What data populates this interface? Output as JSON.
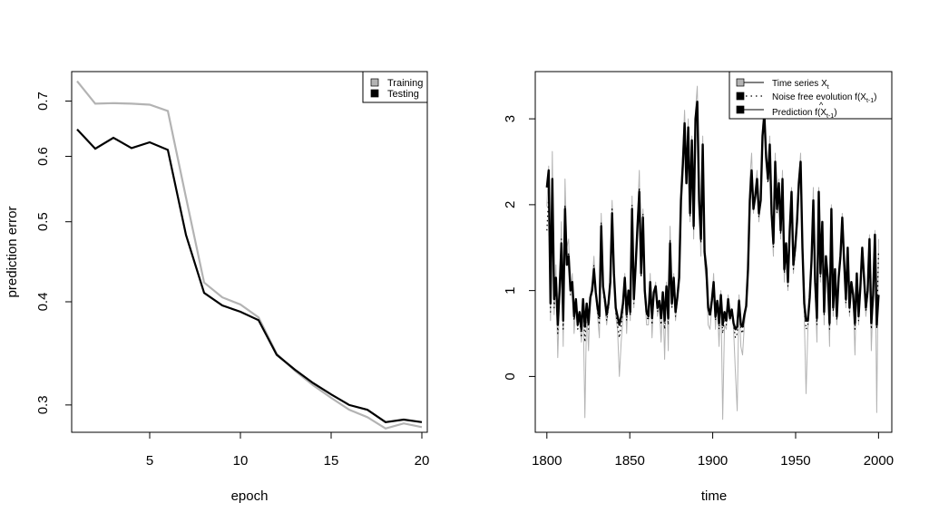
{
  "chart_data": [
    {
      "type": "line",
      "title": "",
      "xlabel": "epoch",
      "ylabel": "prediction error",
      "y_scale": "log",
      "xlim": [
        0.7,
        20.3
      ],
      "ylim": [
        0.278,
        0.76
      ],
      "x_ticks": [
        5,
        10,
        15,
        20
      ],
      "y_ticks": [
        0.3,
        0.4,
        0.5,
        0.6,
        0.7
      ],
      "x_tick_labels": [
        "5",
        "10",
        "15",
        "20"
      ],
      "y_tick_labels": [
        "0.3",
        "0.4",
        "0.5",
        "0.6",
        "0.7"
      ],
      "legend_position": "top-right",
      "x": [
        1,
        2,
        3,
        4,
        5,
        6,
        7,
        8,
        9,
        10,
        11,
        12,
        13,
        14,
        15,
        16,
        17,
        18,
        19,
        20
      ],
      "series": [
        {
          "name": "Training",
          "color": "#b3b3b3",
          "values": [
            0.74,
            0.695,
            0.696,
            0.695,
            0.693,
            0.681,
            0.535,
            0.422,
            0.405,
            0.397,
            0.383,
            0.346,
            0.33,
            0.317,
            0.306,
            0.296,
            0.29,
            0.281,
            0.285,
            0.282
          ]
        },
        {
          "name": "Testing",
          "color": "#000000",
          "values": [
            0.647,
            0.613,
            0.632,
            0.614,
            0.624,
            0.611,
            0.482,
            0.41,
            0.396,
            0.389,
            0.38,
            0.345,
            0.331,
            0.319,
            0.309,
            0.3,
            0.296,
            0.286,
            0.288,
            0.286
          ]
        }
      ]
    },
    {
      "type": "line",
      "title": "",
      "xlabel": "time",
      "ylabel": "",
      "xlim": [
        1793,
        2008
      ],
      "ylim": [
        -0.65,
        3.55
      ],
      "x_ticks": [
        1800,
        1850,
        1900,
        1950,
        2000
      ],
      "y_ticks": [
        0,
        1,
        2,
        3
      ],
      "x_tick_labels": [
        "1800",
        "1850",
        "1900",
        "1950",
        "2000"
      ],
      "y_tick_labels": [
        "0",
        "1",
        "2",
        "3"
      ],
      "legend_position": "top-right",
      "legend": [
        {
          "label": "Time series X",
          "sub": "t",
          "style": "gray-solid"
        },
        {
          "label": "Noise free evolution f(X",
          "sub": "t-1",
          "suffix": ")",
          "style": "dotted"
        },
        {
          "label": "Prediction f(X",
          "sub": "t-1",
          "suffix": ")",
          "hat": "^",
          "style": "black-solid"
        }
      ],
      "time_start": 1800,
      "series": [
        {
          "name": "Time series X",
          "color": "#b3b3b3",
          "values": [
            1.98,
            2.45,
            0.65,
            2.62,
            0.72,
            1.3,
            0.22,
            0.9,
            1.8,
            0.35,
            2.3,
            1.5,
            1.6,
            0.95,
            1.2,
            0.5,
            0.85,
            0.58,
            0.72,
            0.4,
            0.88,
            -0.48,
            0.82,
            0.3,
            0.95,
            1.1,
            1.4,
            0.95,
            0.7,
            0.45,
            1.9,
            1.1,
            0.85,
            0.6,
            0.8,
            1.2,
            2.05,
            1.3,
            0.7,
            0.55,
            0.0,
            0.4,
            0.7,
            1.2,
            0.5,
            1.0,
            0.65,
            2.1,
            0.8,
            1.4,
            1.85,
            2.4,
            1.2,
            1.95,
            0.95,
            0.6,
            0.6,
            1.2,
            0.45,
            0.95,
            1.1,
            0.7,
            0.85,
            0.4,
            0.95,
            0.2,
            1.1,
            0.3,
            1.75,
            0.8,
            1.2,
            0.65,
            0.9,
            1.2,
            2.2,
            2.6,
            3.1,
            2.4,
            3.0,
            1.8,
            2.8,
            1.6,
            3.1,
            3.38,
            2.0,
            1.4,
            2.8,
            1.3,
            1.1,
            0.6,
            0.55,
            0.8,
            1.2,
            0.55,
            0.85,
            0.35,
            1.0,
            -0.5,
            0.6,
            0.55,
            0.95,
            0.65,
            0.75,
            0.55,
            0.05,
            -0.4,
            0.95,
            0.35,
            0.25,
            0.6,
            0.8,
            1.3,
            2.3,
            2.6,
            1.9,
            2.2,
            2.4,
            1.8,
            2.1,
            2.9,
            3.2,
            2.6,
            2.3,
            2.8,
            1.8,
            1.4,
            2.6,
            1.9,
            2.3,
            1.6,
            2.4,
            1.1,
            1.5,
            1.0,
            1.7,
            2.2,
            1.2,
            1.45,
            1.8,
            2.3,
            2.6,
            1.4,
            0.7,
            -0.2,
            0.55,
            0.9,
            1.4,
            2.2,
            1.0,
            0.4,
            2.2,
            1.1,
            1.8,
            0.6,
            1.4,
            1.1,
            0.35,
            2.0,
            0.7,
            1.2,
            0.6,
            1.1,
            1.4,
            1.9,
            1.3,
            0.8,
            1.5,
            0.7,
            1.1,
            0.9,
            0.25,
            1.2,
            0.6,
            1.0,
            1.5,
            1.1,
            0.7,
            0.95,
            1.65,
            0.3,
            0.9,
            1.7,
            -0.42,
            1.6
          ]
        },
        {
          "name": "Noise free evolution f(X)",
          "color": "#000000",
          "values": [
            1.7,
            2.1,
            0.75,
            2.2,
            0.8,
            1.1,
            0.5,
            0.95,
            1.6,
            0.55,
            2.0,
            1.3,
            1.45,
            0.95,
            1.1,
            0.65,
            0.85,
            0.55,
            0.7,
            0.45,
            0.85,
            0.4,
            0.8,
            0.55,
            0.9,
            1.0,
            1.3,
            0.95,
            0.75,
            0.6,
            1.8,
            1.0,
            0.85,
            0.65,
            0.8,
            1.1,
            1.95,
            1.2,
            0.75,
            0.6,
            0.45,
            0.6,
            0.8,
            1.15,
            0.65,
            1.0,
            0.7,
            2.0,
            0.85,
            1.3,
            1.8,
            2.2,
            1.15,
            1.9,
            0.95,
            0.7,
            0.65,
            1.1,
            0.6,
            0.95,
            1.05,
            0.75,
            0.85,
            0.6,
            0.95,
            0.55,
            1.05,
            0.6,
            1.6,
            0.8,
            1.15,
            0.7,
            0.9,
            1.15,
            2.1,
            2.5,
            2.9,
            2.3,
            2.85,
            1.85,
            2.7,
            1.7,
            2.95,
            3.1,
            2.0,
            1.55,
            2.65,
            1.4,
            1.2,
            0.75,
            0.7,
            0.85,
            1.1,
            0.65,
            0.85,
            0.55,
            0.95,
            0.5,
            0.7,
            0.6,
            0.9,
            0.65,
            0.75,
            0.6,
            0.45,
            0.5,
            0.9,
            0.55,
            0.5,
            0.7,
            0.8,
            1.25,
            2.1,
            2.4,
            1.95,
            2.1,
            2.3,
            1.85,
            2.05,
            2.75,
            3.0,
            2.55,
            2.25,
            2.65,
            1.85,
            1.5,
            2.45,
            1.9,
            2.2,
            1.65,
            2.25,
            1.2,
            1.5,
            1.05,
            1.65,
            2.1,
            1.25,
            1.45,
            1.75,
            2.2,
            2.45,
            1.45,
            0.8,
            0.55,
            0.6,
            0.9,
            1.35,
            2.05,
            1.05,
            0.6,
            2.1,
            1.15,
            1.75,
            0.7,
            1.35,
            1.1,
            0.55,
            1.9,
            0.75,
            1.2,
            0.65,
            1.1,
            1.35,
            1.8,
            1.3,
            0.85,
            1.45,
            0.75,
            1.05,
            0.9,
            0.55,
            1.15,
            0.65,
            1.0,
            1.45,
            1.1,
            0.75,
            0.95,
            1.55,
            0.55,
            0.9,
            1.6,
            0.55,
            1.45
          ]
        },
        {
          "name": "Prediction f(X)",
          "color": "#000000",
          "values": [
            2.2,
            2.4,
            0.85,
            2.3,
            0.9,
            1.15,
            0.6,
            1.0,
            1.55,
            0.65,
            1.95,
            1.3,
            1.4,
            1.0,
            1.1,
            0.7,
            0.9,
            0.6,
            0.75,
            0.55,
            0.9,
            0.58,
            0.85,
            0.62,
            0.92,
            1.0,
            1.25,
            0.98,
            0.8,
            0.7,
            1.75,
            1.05,
            0.9,
            0.72,
            0.85,
            1.1,
            1.9,
            1.2,
            0.8,
            0.7,
            0.6,
            0.7,
            0.85,
            1.15,
            0.72,
            1.0,
            0.75,
            1.95,
            0.9,
            1.3,
            1.75,
            2.15,
            1.2,
            1.85,
            1.0,
            0.75,
            0.7,
            1.1,
            0.68,
            0.98,
            1.05,
            0.8,
            0.88,
            0.68,
            0.98,
            0.65,
            1.05,
            0.68,
            1.55,
            0.85,
            1.15,
            0.75,
            0.92,
            1.15,
            2.05,
            2.45,
            2.95,
            2.25,
            2.9,
            1.9,
            2.75,
            1.75,
            3.0,
            3.2,
            2.05,
            1.6,
            2.7,
            1.45,
            1.25,
            0.8,
            0.72,
            0.88,
            1.1,
            0.7,
            0.88,
            0.62,
            0.95,
            0.6,
            0.75,
            0.65,
            0.9,
            0.68,
            0.78,
            0.62,
            0.55,
            0.58,
            0.88,
            0.6,
            0.58,
            0.72,
            0.82,
            1.25,
            2.05,
            2.4,
            1.95,
            2.1,
            2.3,
            1.9,
            2.05,
            2.8,
            3.05,
            2.55,
            2.3,
            2.7,
            1.9,
            1.55,
            2.5,
            1.95,
            2.25,
            1.7,
            2.3,
            1.25,
            1.55,
            1.1,
            1.7,
            2.15,
            1.3,
            1.5,
            1.8,
            2.25,
            2.5,
            1.5,
            0.85,
            0.65,
            0.65,
            0.92,
            1.35,
            2.05,
            1.1,
            0.68,
            2.15,
            1.2,
            1.8,
            0.75,
            1.4,
            1.15,
            0.62,
            1.95,
            0.8,
            1.25,
            0.7,
            1.15,
            1.4,
            1.85,
            1.35,
            0.9,
            1.5,
            0.8,
            1.1,
            0.95,
            0.62,
            1.2,
            0.7,
            1.05,
            1.5,
            1.15,
            0.8,
            1.0,
            1.6,
            0.62,
            0.95,
            1.65,
            0.6,
            0.95
          ]
        }
      ]
    }
  ]
}
